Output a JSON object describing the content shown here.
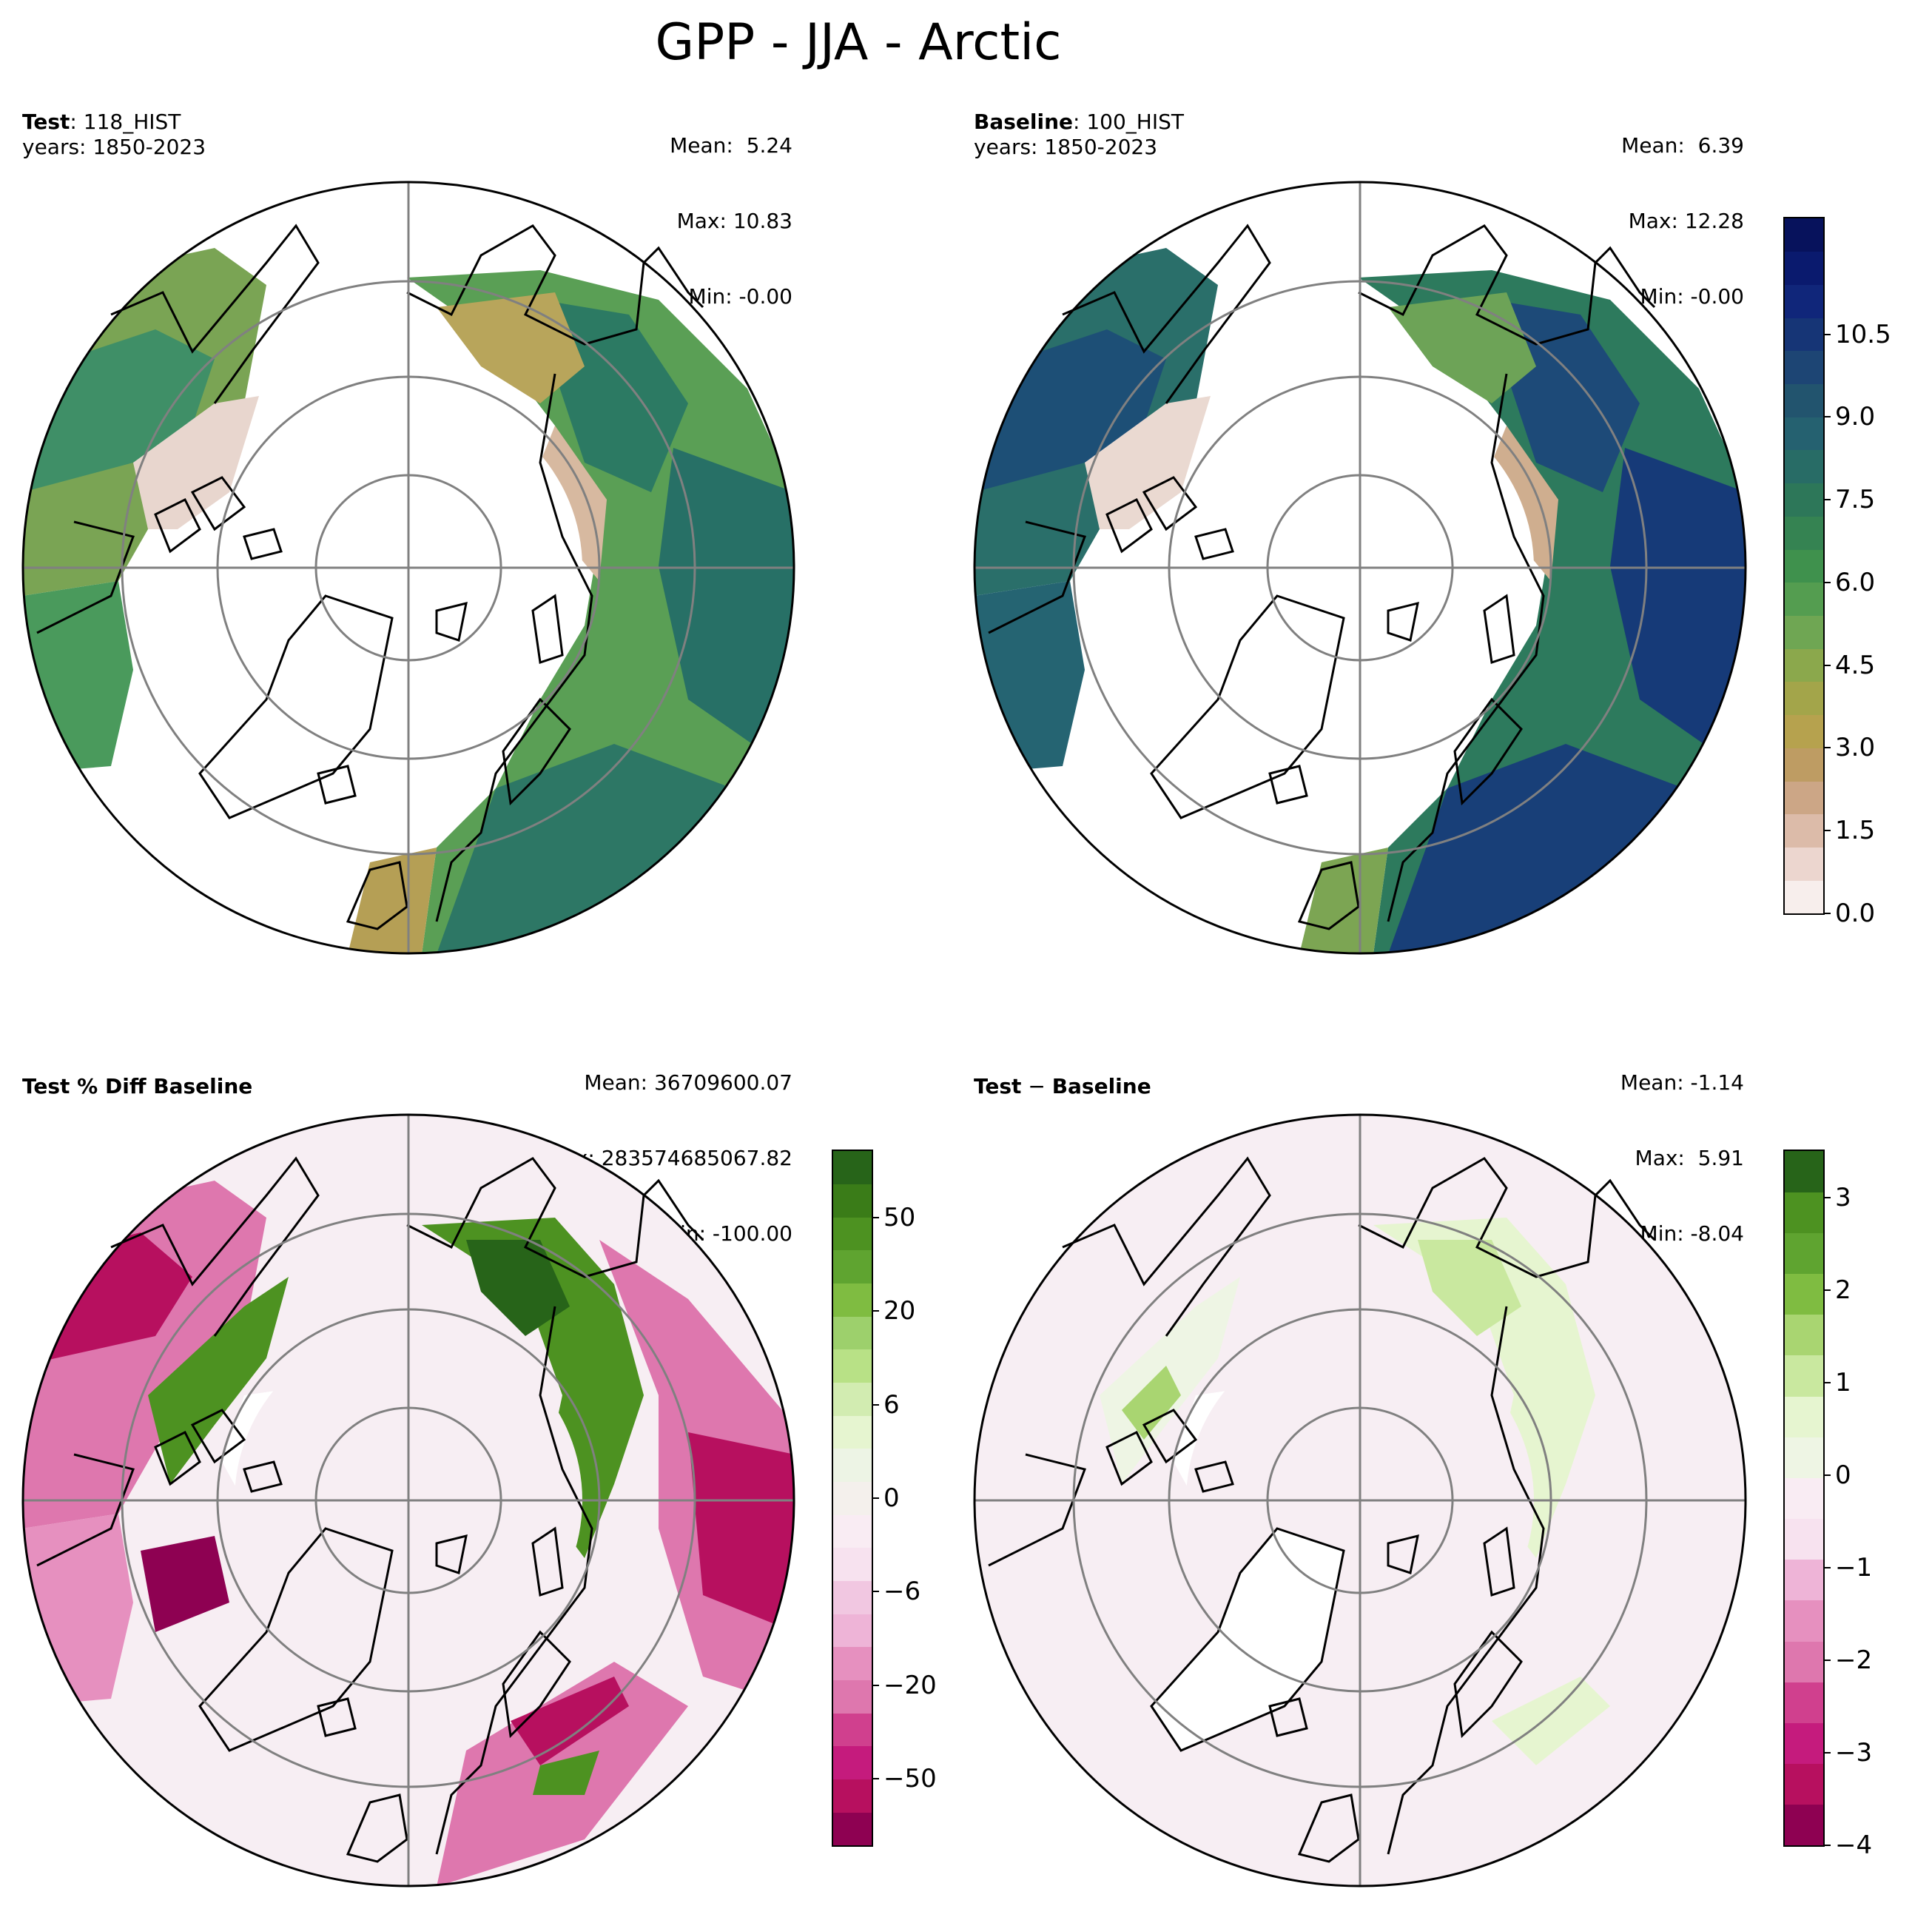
{
  "title": "GPP - JJA - Arctic",
  "panels": {
    "test": {
      "label_bold": "Test",
      "label_rest": ": 118_HIST",
      "years": "years: 1850-2023",
      "mean": "Mean:  5.24",
      "max": "Max: 10.83",
      "min": "Min: -0.00"
    },
    "baseline": {
      "label_bold": "Baseline",
      "label_rest": ": 100_HIST",
      "years": "years: 1850-2023",
      "mean": "Mean:  6.39",
      "max": "Max: 12.28",
      "min": "Min: -0.00"
    },
    "pctdiff": {
      "label_bold": "Test % Diff Baseline",
      "mean": "Mean: 36709600.07",
      "max": "Max: 283574685067.82",
      "min": "Min: -100.00"
    },
    "diff": {
      "label_bold": "Test",
      "label_sep": " − ",
      "label_bold2": "Baseline",
      "mean": "Mean: -1.14",
      "max": "Max:  5.91",
      "min": "Min: -8.04"
    }
  },
  "colorbars": {
    "gpp": {
      "ticks": [
        "0.0",
        "1.5",
        "3.0",
        "4.5",
        "6.0",
        "7.5",
        "9.0",
        "10.5"
      ],
      "colors": [
        "#f7eeec",
        "#ecd6cf",
        "#dcbba9",
        "#cca686",
        "#be9c63",
        "#b6a24e",
        "#a3a54a",
        "#8ba84c",
        "#6fa653",
        "#549d50",
        "#3f914d",
        "#358352",
        "#2d7759",
        "#286c66",
        "#256170",
        "#22546e",
        "#1d4574",
        "#163576",
        "#10267a",
        "#0a1a6e",
        "#07125c"
      ]
    },
    "pct": {
      "ticks": [
        "−50",
        "−20",
        "−6",
        "0",
        "6",
        "20",
        "50"
      ],
      "colors": [
        "#8e0152",
        "#b7105f",
        "#c51b7d",
        "#d0408e",
        "#de77ae",
        "#e690bf",
        "#eeb4d7",
        "#f1c7e1",
        "#f7e2ef",
        "#f9ecf3",
        "#f4f0ec",
        "#edf4e5",
        "#e6f5d0",
        "#d2ecb1",
        "#b8e186",
        "#9dd06c",
        "#7fbc41",
        "#5fa430",
        "#4d9221",
        "#3a7c18",
        "#276419"
      ]
    },
    "diff": {
      "ticks": [
        "−4",
        "−3",
        "−2",
        "−1",
        "0",
        "1",
        "2",
        "3"
      ],
      "colors": [
        "#8e0152",
        "#b7105f",
        "#c51b7d",
        "#d0408e",
        "#de77ae",
        "#e690bf",
        "#eeb4d7",
        "#f7e2ef",
        "#f9ecf3",
        "#eef5e4",
        "#e6f5d0",
        "#c9e89f",
        "#a9d571",
        "#7fbc41",
        "#5fa430",
        "#4d9221",
        "#276419"
      ]
    }
  }
}
